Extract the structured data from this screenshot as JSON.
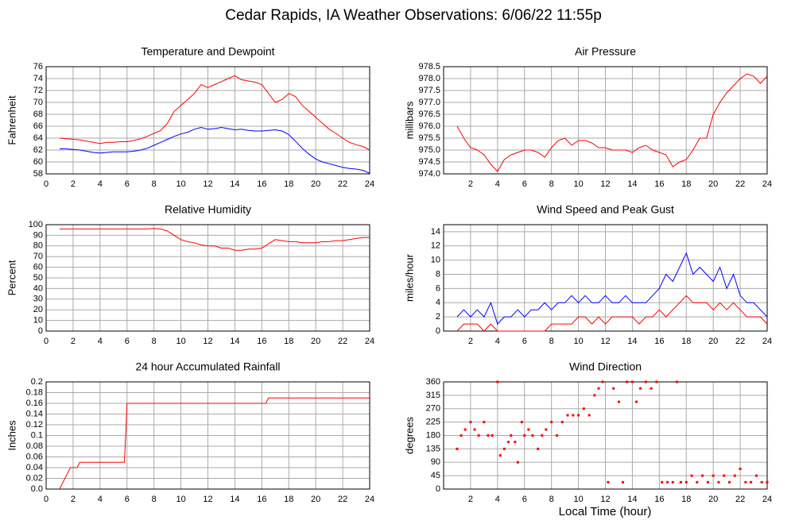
{
  "title": "Cedar Rapids, IA Weather Observations: 6/06/22 11:55p",
  "xlabel": "Local Time (hour)",
  "chart_data": [
    {
      "type": "line",
      "title": "Temperature and Dewpoint",
      "ylabel": "Fahrenheit",
      "grid": true,
      "xlim": [
        0,
        24
      ],
      "xticks": [
        0,
        2,
        4,
        6,
        8,
        10,
        12,
        14,
        16,
        18,
        20,
        22,
        24
      ],
      "ylim": [
        58,
        76
      ],
      "yticks": [
        58,
        60,
        62,
        64,
        66,
        68,
        70,
        72,
        74,
        76
      ],
      "x": [
        1,
        1.5,
        2,
        2.5,
        3,
        3.5,
        4,
        4.5,
        5,
        5.5,
        6,
        6.5,
        7,
        7.5,
        8,
        8.5,
        9,
        9.5,
        10,
        10.5,
        11,
        11.5,
        12,
        12.5,
        13,
        13.5,
        14,
        14.5,
        15,
        15.5,
        16,
        16.5,
        17,
        17.5,
        18,
        18.5,
        19,
        19.5,
        20,
        20.5,
        21,
        21.5,
        22,
        22.5,
        23,
        23.5,
        24
      ],
      "series": [
        {
          "color": "#ff0000",
          "values": [
            64,
            63.9,
            63.8,
            63.7,
            63.5,
            63.3,
            63.1,
            63.3,
            63.3,
            63.4,
            63.4,
            63.6,
            63.9,
            64.3,
            64.8,
            65.3,
            66.5,
            68.5,
            69.5,
            70.5,
            71.5,
            73,
            72.5,
            73,
            73.5,
            74,
            74.5,
            73.8,
            73.6,
            73.4,
            73,
            71.5,
            70,
            70.5,
            71.5,
            71,
            69.5,
            68.5,
            67.5,
            66.5,
            65.5,
            64.8,
            64,
            63.3,
            62.9,
            62.6,
            62
          ]
        },
        {
          "color": "#0000ff",
          "values": [
            62.2,
            62.2,
            62.1,
            62,
            61.8,
            61.6,
            61.5,
            61.6,
            61.7,
            61.7,
            61.7,
            61.8,
            62,
            62.3,
            62.8,
            63.3,
            63.8,
            64.3,
            64.7,
            65,
            65.5,
            65.8,
            65.5,
            65.6,
            65.8,
            65.6,
            65.4,
            65.5,
            65.3,
            65.2,
            65.2,
            65.3,
            65.4,
            65.2,
            64.6,
            63.5,
            62.3,
            61.3,
            60.5,
            60,
            59.7,
            59.4,
            59.1,
            58.9,
            58.8,
            58.6,
            58.1
          ]
        }
      ]
    },
    {
      "type": "line",
      "title": "Air Pressure",
      "ylabel": "millibars",
      "grid": true,
      "xlim": [
        0,
        24
      ],
      "xticks": [
        2,
        4,
        6,
        8,
        10,
        12,
        14,
        16,
        18,
        20,
        22,
        24
      ],
      "ylim": [
        974,
        978.5
      ],
      "yticks": [
        {
          "value": 974,
          "label": "974.0"
        },
        974.5,
        {
          "value": 975,
          "label": "975.0"
        },
        975.5,
        {
          "value": 976,
          "label": "976.0"
        },
        976.5,
        {
          "value": 977,
          "label": "977.0"
        },
        977.5,
        {
          "value": 978,
          "label": "978.0"
        },
        978.5
      ],
      "x": [
        1,
        1.5,
        2,
        2.5,
        3,
        3.5,
        4,
        4.5,
        5,
        5.5,
        6,
        6.5,
        7,
        7.5,
        8,
        8.5,
        9,
        9.5,
        10,
        10.5,
        11,
        11.5,
        12,
        12.5,
        13,
        13.5,
        14,
        14.5,
        15,
        15.5,
        16,
        16.5,
        17,
        17.5,
        18,
        18.5,
        19,
        19.5,
        20,
        20.5,
        21,
        21.5,
        22,
        22.5,
        23,
        23.5,
        24
      ],
      "series": [
        {
          "color": "#ff0000",
          "values": [
            976,
            975.5,
            975.1,
            975,
            974.8,
            974.4,
            974.1,
            974.6,
            974.8,
            974.9,
            975,
            975,
            974.9,
            974.7,
            975.1,
            975.4,
            975.5,
            975.2,
            975.4,
            975.4,
            975.3,
            975.1,
            975.1,
            975,
            975,
            975,
            974.9,
            975.1,
            975.2,
            975,
            974.9,
            974.8,
            974.3,
            974.5,
            974.6,
            975,
            975.5,
            975.5,
            976.5,
            977,
            977.4,
            977.7,
            978,
            978.2,
            978.1,
            977.8,
            978.1
          ]
        }
      ]
    },
    {
      "type": "line",
      "title": "Relative Humidity",
      "ylabel": "Percent",
      "grid": true,
      "xlim": [
        0,
        24
      ],
      "xticks": [
        0,
        2,
        4,
        6,
        8,
        10,
        12,
        14,
        16,
        18,
        20,
        22,
        24
      ],
      "ylim": [
        0,
        100
      ],
      "yticks": [
        0,
        10,
        20,
        30,
        40,
        50,
        60,
        70,
        80,
        90,
        100
      ],
      "x": [
        1,
        1.5,
        2,
        2.5,
        3,
        3.5,
        4,
        4.5,
        5,
        5.5,
        6,
        6.5,
        7,
        7.5,
        8,
        8.5,
        9,
        9.5,
        10,
        10.5,
        11,
        11.5,
        12,
        12.5,
        13,
        13.5,
        14,
        14.5,
        15,
        15.5,
        16,
        16.5,
        17,
        17.5,
        18,
        18.5,
        19,
        19.5,
        20,
        20.5,
        21,
        21.5,
        22,
        22.5,
        23,
        23.5,
        24
      ],
      "series": [
        {
          "color": "#ff0000",
          "values": [
            96,
            96,
            96,
            96,
            96,
            96,
            96,
            96,
            96,
            96,
            96,
            96,
            96,
            96,
            96.5,
            96,
            94,
            90,
            86,
            84,
            83,
            81,
            80,
            80,
            78,
            78,
            76,
            76,
            77,
            77,
            78,
            82,
            86,
            85,
            84,
            84,
            83,
            83,
            83,
            84,
            84,
            85,
            85,
            86,
            87,
            88,
            88
          ]
        }
      ]
    },
    {
      "type": "line",
      "title": "Wind Speed and Peak Gust",
      "ylabel": "miles/hour",
      "grid": true,
      "xlim": [
        0,
        24
      ],
      "xticks": [
        2,
        4,
        6,
        8,
        10,
        12,
        14,
        16,
        18,
        20,
        22,
        24
      ],
      "ylim": [
        0,
        15
      ],
      "yticks": [
        0,
        2,
        4,
        6,
        8,
        10,
        12,
        14
      ],
      "x": [
        1,
        1.5,
        2,
        2.5,
        3,
        3.5,
        4,
        4.5,
        5,
        5.5,
        6,
        6.5,
        7,
        7.5,
        8,
        8.5,
        9,
        9.5,
        10,
        10.5,
        11,
        11.5,
        12,
        12.5,
        13,
        13.5,
        14,
        14.5,
        15,
        15.5,
        16,
        16.5,
        17,
        17.5,
        18,
        18.5,
        19,
        19.5,
        20,
        20.5,
        21,
        21.5,
        22,
        22.5,
        23,
        23.5,
        24
      ],
      "series": [
        {
          "color": "#0000ff",
          "values": [
            2,
            3,
            2,
            3,
            2,
            4,
            1,
            2,
            2,
            3,
            2,
            3,
            3,
            4,
            3,
            4,
            4,
            5,
            4,
            5,
            4,
            4,
            5,
            4,
            4,
            5,
            4,
            4,
            4,
            5,
            6,
            8,
            7,
            9,
            11,
            8,
            9,
            8,
            7,
            9,
            6,
            8,
            5,
            4,
            4,
            3,
            2
          ]
        },
        {
          "color": "#ff0000",
          "values": [
            0,
            1,
            1,
            1,
            0,
            1,
            0,
            0,
            0,
            0,
            0,
            0,
            0,
            0,
            1,
            1,
            1,
            1,
            2,
            2,
            1,
            2,
            1,
            2,
            2,
            2,
            2,
            1,
            2,
            2,
            3,
            2,
            3,
            4,
            5,
            4,
            4,
            4,
            3,
            4,
            3,
            4,
            3,
            2,
            2,
            2,
            1
          ]
        }
      ]
    },
    {
      "type": "line",
      "title": "24 hour Accumulated Rainfall",
      "ylabel": "Inches",
      "grid": true,
      "xlim": [
        0,
        24
      ],
      "xticks": [
        0,
        2,
        4,
        6,
        8,
        10,
        12,
        14,
        16,
        18,
        20,
        22,
        24
      ],
      "ylim": [
        0,
        0.2
      ],
      "yticks": [
        {
          "value": 0,
          "label": "0.0"
        },
        0.02,
        0.04,
        0.06,
        0.08,
        0.1,
        0.12,
        0.14,
        0.16,
        0.18,
        0.2
      ],
      "x": [
        1,
        1.2,
        1.4,
        1.6,
        1.8,
        2.3,
        2.5,
        5.8,
        5.9,
        6,
        16.3,
        16.5,
        24
      ],
      "series": [
        {
          "color": "#ff0000",
          "values": [
            0,
            0.01,
            0.02,
            0.03,
            0.04,
            0.04,
            0.05,
            0.05,
            0.1,
            0.16,
            0.16,
            0.17,
            0.17
          ]
        }
      ]
    },
    {
      "type": "scatter",
      "title": "Wind Direction",
      "ylabel": "degrees",
      "grid": true,
      "xlim": [
        0,
        24
      ],
      "xticks": [
        2,
        4,
        6,
        8,
        10,
        12,
        14,
        16,
        18,
        20,
        22,
        24
      ],
      "ylim": [
        0,
        360
      ],
      "yticks": [
        0,
        45,
        90,
        135,
        180,
        225,
        270,
        315,
        360
      ],
      "x": [
        1,
        1.3,
        1.6,
        2,
        2.3,
        2.6,
        3,
        3.3,
        3.6,
        4,
        4.2,
        4.5,
        4.8,
        5,
        5.3,
        5.5,
        5.8,
        6,
        6.3,
        6.6,
        7,
        7.3,
        7.6,
        8,
        8.4,
        8.8,
        9.2,
        9.6,
        10,
        10.4,
        10.8,
        11.2,
        11.5,
        11.8,
        12.2,
        12.6,
        13,
        13.3,
        13.6,
        14,
        14.3,
        14.6,
        15,
        15.4,
        15.8,
        16.2,
        16.6,
        17,
        17.3,
        17.6,
        18,
        18.4,
        18.8,
        19.2,
        19.6,
        20,
        20.4,
        20.8,
        21.2,
        21.6,
        22,
        22.4,
        22.8,
        23.2,
        23.6,
        24
      ],
      "series": [
        {
          "color": "#ff0000",
          "values": [
            135,
            180,
            200,
            225,
            200,
            180,
            225,
            180,
            180,
            360,
            113,
            135,
            158,
            180,
            158,
            90,
            225,
            180,
            200,
            180,
            135,
            180,
            200,
            225,
            180,
            225,
            248,
            248,
            248,
            270,
            248,
            315,
            338,
            360,
            23,
            338,
            293,
            23,
            360,
            360,
            293,
            338,
            360,
            338,
            360,
            23,
            23,
            23,
            360,
            23,
            23,
            45,
            23,
            45,
            23,
            45,
            23,
            45,
            23,
            45,
            68,
            23,
            23,
            45,
            23,
            23
          ]
        }
      ]
    }
  ]
}
